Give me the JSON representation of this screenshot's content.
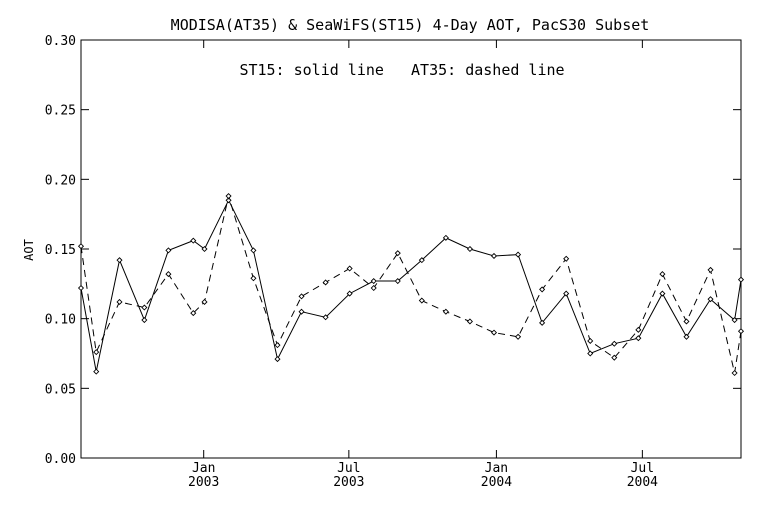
{
  "chart_data": {
    "type": "line",
    "title": "MODISA(AT35) & SeaWiFS(ST15) 4-Day AOT, PacS30 Subset",
    "annotation": "ST15: solid line   AT35: dashed line",
    "ylabel": "AOT",
    "xlabel": "",
    "ylim": [
      0.0,
      0.3
    ],
    "yticks": [
      "0.00",
      "0.05",
      "0.10",
      "0.15",
      "0.20",
      "0.25",
      "0.30"
    ],
    "xlim": [
      "2002-08-01",
      "2004-11-01"
    ],
    "xticks": [
      {
        "date": "2003-01-01",
        "line1": "Jan",
        "line2": "2003"
      },
      {
        "date": "2003-07-01",
        "line1": "Jul",
        "line2": "2003"
      },
      {
        "date": "2004-01-01",
        "line1": "Jan",
        "line2": "2004"
      },
      {
        "date": "2004-07-01",
        "line1": "Jul",
        "line2": "2004"
      }
    ],
    "grid": false,
    "colors": {
      "line": "#000000",
      "background": "#ffffff"
    },
    "series": [
      {
        "name": "ST15",
        "style": "solid",
        "points": [
          [
            "2002-08-01",
            0.122
          ],
          [
            "2002-08-20",
            0.062
          ],
          [
            "2002-09-18",
            0.142
          ],
          [
            "2002-10-19",
            0.099
          ],
          [
            "2002-11-18",
            0.149
          ],
          [
            "2002-12-19",
            0.156
          ],
          [
            "2003-01-02",
            0.15
          ],
          [
            "2003-02-01",
            0.185
          ],
          [
            "2003-03-04",
            0.149
          ],
          [
            "2003-04-03",
            0.071
          ],
          [
            "2003-05-03",
            0.105
          ],
          [
            "2003-06-02",
            0.101
          ],
          [
            "2003-07-02",
            0.118
          ],
          [
            "2003-08-01",
            0.127
          ],
          [
            "2003-08-31",
            0.127
          ],
          [
            "2003-09-30",
            0.142
          ],
          [
            "2003-10-30",
            0.158
          ],
          [
            "2003-11-29",
            0.15
          ],
          [
            "2003-12-29",
            0.145
          ],
          [
            "2004-01-28",
            0.146
          ],
          [
            "2004-02-27",
            0.097
          ],
          [
            "2004-03-28",
            0.118
          ],
          [
            "2004-04-27",
            0.075
          ],
          [
            "2004-05-27",
            0.082
          ],
          [
            "2004-06-26",
            0.086
          ],
          [
            "2004-07-26",
            0.118
          ],
          [
            "2004-08-25",
            0.087
          ],
          [
            "2004-09-24",
            0.114
          ],
          [
            "2004-10-24",
            0.099
          ],
          [
            "2004-11-01",
            0.128
          ]
        ]
      },
      {
        "name": "AT35",
        "style": "dashed",
        "points": [
          [
            "2002-08-01",
            0.152
          ],
          [
            "2002-08-20",
            0.076
          ],
          [
            "2002-09-18",
            0.112
          ],
          [
            "2002-10-19",
            0.108
          ],
          [
            "2002-11-18",
            0.132
          ],
          [
            "2002-12-19",
            0.104
          ],
          [
            "2003-01-02",
            0.112
          ],
          [
            "2003-02-01",
            0.188
          ],
          [
            "2003-03-04",
            0.129
          ],
          [
            "2003-04-03",
            0.081
          ],
          [
            "2003-05-03",
            0.116
          ],
          [
            "2003-06-02",
            0.126
          ],
          [
            "2003-07-02",
            0.136
          ],
          [
            "2003-08-01",
            0.122
          ],
          [
            "2003-08-31",
            0.147
          ],
          [
            "2003-09-30",
            0.113
          ],
          [
            "2003-10-30",
            0.105
          ],
          [
            "2003-11-29",
            0.098
          ],
          [
            "2003-12-29",
            0.09
          ],
          [
            "2004-01-28",
            0.087
          ],
          [
            "2004-02-27",
            0.121
          ],
          [
            "2004-03-28",
            0.143
          ],
          [
            "2004-04-27",
            0.084
          ],
          [
            "2004-05-27",
            0.072
          ],
          [
            "2004-06-26",
            0.092
          ],
          [
            "2004-07-26",
            0.132
          ],
          [
            "2004-08-25",
            0.098
          ],
          [
            "2004-09-24",
            0.135
          ],
          [
            "2004-10-24",
            0.061
          ],
          [
            "2004-11-01",
            0.091
          ]
        ]
      }
    ]
  }
}
